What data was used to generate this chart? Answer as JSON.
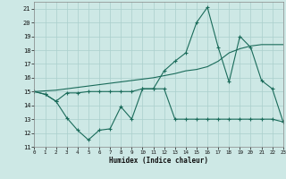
{
  "xlabel": "Humidex (Indice chaleur)",
  "bg_color": "#cde8e5",
  "grid_color": "#aacfcc",
  "line_color": "#1a6b5a",
  "x_values": [
    0,
    1,
    2,
    3,
    4,
    5,
    6,
    7,
    8,
    9,
    10,
    11,
    12,
    13,
    14,
    15,
    16,
    17,
    18,
    19,
    20,
    21,
    22,
    23
  ],
  "line1": [
    15.0,
    14.8,
    14.3,
    13.1,
    12.2,
    11.5,
    12.2,
    12.3,
    13.9,
    13.0,
    15.2,
    15.2,
    16.5,
    17.2,
    17.8,
    20.0,
    21.1,
    18.2,
    15.7,
    19.0,
    18.2,
    15.8,
    15.2,
    12.8
  ],
  "line2": [
    15.0,
    14.8,
    14.3,
    14.9,
    14.9,
    15.0,
    15.0,
    15.0,
    15.0,
    15.0,
    15.2,
    15.2,
    15.2,
    13.0,
    13.0,
    13.0,
    13.0,
    13.0,
    13.0,
    13.0,
    13.0,
    13.0,
    13.0,
    12.8
  ],
  "line3": [
    15.0,
    15.05,
    15.1,
    15.2,
    15.3,
    15.4,
    15.5,
    15.6,
    15.7,
    15.8,
    15.9,
    16.0,
    16.15,
    16.3,
    16.5,
    16.6,
    16.8,
    17.2,
    17.8,
    18.1,
    18.3,
    18.4,
    18.4,
    18.4
  ],
  "ylim": [
    11,
    21.5
  ],
  "xlim": [
    0,
    23
  ],
  "yticks": [
    11,
    12,
    13,
    14,
    15,
    16,
    17,
    18,
    19,
    20,
    21
  ],
  "xticks": [
    0,
    1,
    2,
    3,
    4,
    5,
    6,
    7,
    8,
    9,
    10,
    11,
    12,
    13,
    14,
    15,
    16,
    17,
    18,
    19,
    20,
    21,
    22,
    23
  ]
}
